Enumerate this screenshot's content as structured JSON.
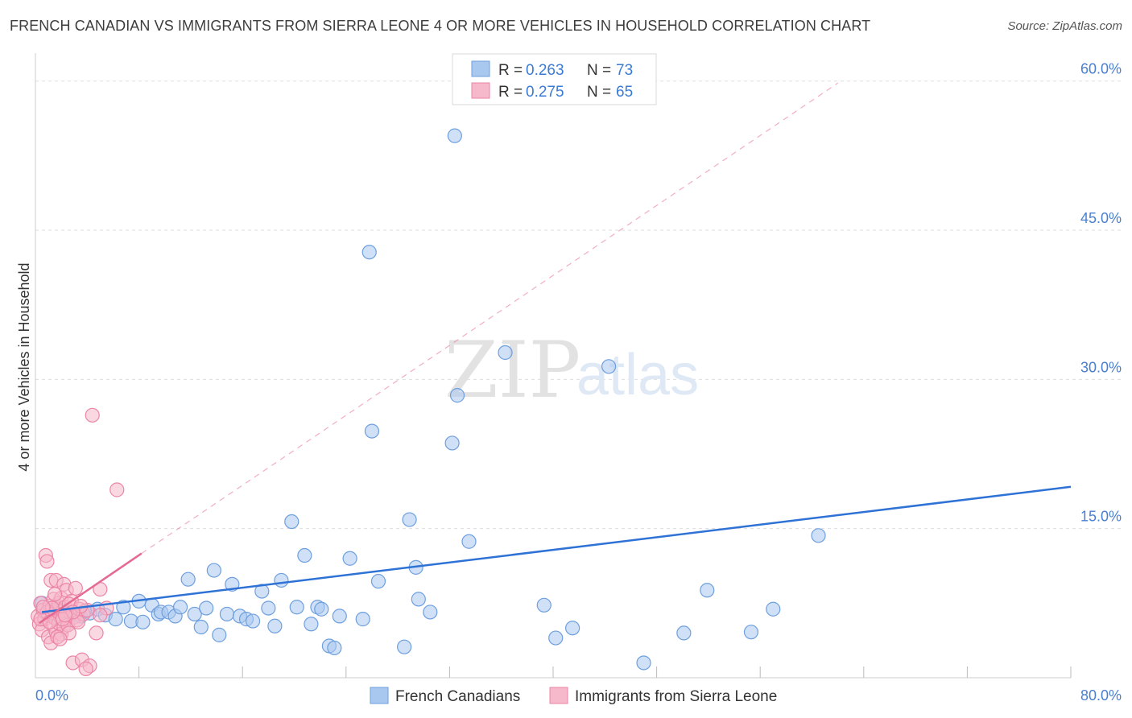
{
  "title": "FRENCH CANADIAN VS IMMIGRANTS FROM SIERRA LEONE 4 OR MORE VEHICLES IN HOUSEHOLD CORRELATION CHART",
  "source": "Source: ZipAtlas.com",
  "watermark": {
    "zip": "ZIP",
    "atlas": "atlas"
  },
  "colors": {
    "blue_fill": "#a9c8f0",
    "blue_stroke": "#6e9fde",
    "blue_line": "#2f72d6",
    "pink_fill": "#f6b8cb",
    "pink_stroke": "#ec85a6",
    "pink_line": "#e56a93",
    "grid": "#dddddd",
    "tick_text": "#4a7fd0"
  },
  "legend": {
    "rows": [
      {
        "r_label": "R =",
        "r_value": "0.263",
        "n_label": "N =",
        "n_value": "73",
        "series": "blue"
      },
      {
        "r_label": "R =",
        "r_value": "0.275",
        "n_label": "N =",
        "n_value": "65",
        "series": "pink"
      }
    ]
  },
  "chart_data": {
    "type": "scatter",
    "title": "FRENCH CANADIAN VS IMMIGRANTS FROM SIERRA LEONE 4 OR MORE VEHICLES IN HOUSEHOLD CORRELATION CHART",
    "xlabel": "",
    "ylabel": "4 or more Vehicles in Household",
    "xlim": [
      0,
      80
    ],
    "ylim": [
      0,
      62
    ],
    "x_tick_labels": [
      {
        "value": 0,
        "label": "0.0%"
      },
      {
        "value": 80,
        "label": "80.0%"
      }
    ],
    "x_minor_ticks": [
      8,
      16,
      24,
      32,
      40,
      48,
      56,
      64,
      72,
      80
    ],
    "y_ticks": [
      {
        "value": 15,
        "label": "15.0%"
      },
      {
        "value": 30,
        "label": "30.0%"
      },
      {
        "value": 45,
        "label": "45.0%"
      },
      {
        "value": 60,
        "label": "60.0%"
      }
    ],
    "grid": true,
    "legend_position": "top-center",
    "series": [
      {
        "name": "French Canadians",
        "color": "blue",
        "r": 0.263,
        "n": 73,
        "trend": {
          "x0": 0.5,
          "y0": 6.6,
          "x1": 80,
          "y1": 19.2,
          "style": "solid"
        },
        "points": [
          [
            0.5,
            7.5
          ],
          [
            0.8,
            6.5
          ],
          [
            1.2,
            6.8
          ],
          [
            1.6,
            7.0
          ],
          [
            2.0,
            6.3
          ],
          [
            2.5,
            6.6
          ],
          [
            3.0,
            6.4
          ],
          [
            3.5,
            6.2
          ],
          [
            4.2,
            6.5
          ],
          [
            4.8,
            6.9
          ],
          [
            5.4,
            6.3
          ],
          [
            6.2,
            5.9
          ],
          [
            6.8,
            7.1
          ],
          [
            7.4,
            5.7
          ],
          [
            8.0,
            7.7
          ],
          [
            8.3,
            5.6
          ],
          [
            9.0,
            7.3
          ],
          [
            9.5,
            6.4
          ],
          [
            9.7,
            6.6
          ],
          [
            10.3,
            6.6
          ],
          [
            10.8,
            6.2
          ],
          [
            11.2,
            7.1
          ],
          [
            11.8,
            9.9
          ],
          [
            12.3,
            6.4
          ],
          [
            12.8,
            5.1
          ],
          [
            13.2,
            7.0
          ],
          [
            13.8,
            10.8
          ],
          [
            14.2,
            4.3
          ],
          [
            14.8,
            6.4
          ],
          [
            15.2,
            9.4
          ],
          [
            15.8,
            6.2
          ],
          [
            16.3,
            5.9
          ],
          [
            16.8,
            5.7
          ],
          [
            17.5,
            8.7
          ],
          [
            18.0,
            7.0
          ],
          [
            18.5,
            5.2
          ],
          [
            19.0,
            9.8
          ],
          [
            19.8,
            15.7
          ],
          [
            20.2,
            7.1
          ],
          [
            20.8,
            12.3
          ],
          [
            21.3,
            5.4
          ],
          [
            21.8,
            7.1
          ],
          [
            22.1,
            6.9
          ],
          [
            22.7,
            3.2
          ],
          [
            23.1,
            3.0
          ],
          [
            23.5,
            6.2
          ],
          [
            24.3,
            12.0
          ],
          [
            25.3,
            5.9
          ],
          [
            25.8,
            42.8
          ],
          [
            26.0,
            24.8
          ],
          [
            26.5,
            9.7
          ],
          [
            28.5,
            3.1
          ],
          [
            28.9,
            15.9
          ],
          [
            29.4,
            11.1
          ],
          [
            29.6,
            7.9
          ],
          [
            30.5,
            6.6
          ],
          [
            32.4,
            54.5
          ],
          [
            32.2,
            23.6
          ],
          [
            32.6,
            28.4
          ],
          [
            33.5,
            13.7
          ],
          [
            36.3,
            32.7
          ],
          [
            39.3,
            7.3
          ],
          [
            40.2,
            4.0
          ],
          [
            41.5,
            5.0
          ],
          [
            44.3,
            31.3
          ],
          [
            47.0,
            1.5
          ],
          [
            50.1,
            4.5
          ],
          [
            51.9,
            8.8
          ],
          [
            55.3,
            4.6
          ],
          [
            57.0,
            6.9
          ],
          [
            60.5,
            14.3
          ],
          [
            1.8,
            6.0
          ],
          [
            3.8,
            6.7
          ]
        ]
      },
      {
        "name": "Immigrants from Sierra Leone",
        "color": "pink",
        "r": 0.275,
        "n": 65,
        "trend": {
          "x0": 0.3,
          "y0": 5.5,
          "x1": 8.2,
          "y1": 12.5,
          "style": "solid"
        },
        "trend_extension": {
          "x0": 8.2,
          "y0": 12.5,
          "x1": 62,
          "y1": 59.8,
          "style": "dashed"
        },
        "points": [
          [
            0.2,
            6.2
          ],
          [
            0.3,
            5.4
          ],
          [
            0.4,
            7.5
          ],
          [
            0.5,
            4.8
          ],
          [
            0.6,
            6.8
          ],
          [
            0.7,
            5.9
          ],
          [
            0.8,
            12.3
          ],
          [
            0.9,
            11.7
          ],
          [
            1.0,
            6.3
          ],
          [
            1.0,
            4.1
          ],
          [
            1.1,
            7.2
          ],
          [
            1.2,
            3.5
          ],
          [
            1.2,
            9.8
          ],
          [
            1.3,
            6.5
          ],
          [
            1.4,
            5.2
          ],
          [
            1.4,
            7.9
          ],
          [
            1.5,
            6.0
          ],
          [
            1.6,
            4.6
          ],
          [
            1.6,
            9.8
          ],
          [
            1.7,
            6.9
          ],
          [
            1.8,
            5.5
          ],
          [
            1.8,
            7.5
          ],
          [
            1.9,
            6.2
          ],
          [
            2.0,
            4.4
          ],
          [
            2.0,
            8.0
          ],
          [
            2.1,
            6.7
          ],
          [
            2.2,
            5.1
          ],
          [
            2.2,
            9.4
          ],
          [
            2.3,
            7.1
          ],
          [
            2.4,
            6.0
          ],
          [
            2.4,
            8.8
          ],
          [
            2.5,
            5.3
          ],
          [
            2.6,
            4.5
          ],
          [
            2.7,
            6.5
          ],
          [
            2.8,
            7.7
          ],
          [
            2.9,
            1.5
          ],
          [
            3.0,
            6.1
          ],
          [
            3.1,
            9.0
          ],
          [
            3.2,
            5.8
          ],
          [
            3.4,
            6.9
          ],
          [
            3.6,
            1.8
          ],
          [
            3.7,
            6.4
          ],
          [
            4.2,
            1.2
          ],
          [
            4.4,
            26.4
          ],
          [
            4.7,
            4.5
          ],
          [
            5.0,
            8.9
          ],
          [
            5.5,
            7.0
          ],
          [
            5.0,
            6.3
          ],
          [
            6.3,
            18.9
          ],
          [
            4.0,
            6.8
          ],
          [
            3.3,
            5.6
          ],
          [
            2.6,
            7.4
          ],
          [
            1.5,
            8.4
          ],
          [
            0.9,
            6.6
          ],
          [
            0.4,
            5.9
          ],
          [
            1.3,
            7.0
          ],
          [
            2.1,
            5.9
          ],
          [
            3.5,
            7.2
          ],
          [
            1.7,
            4.1
          ],
          [
            2.9,
            6.6
          ],
          [
            0.6,
            7.1
          ],
          [
            1.1,
            5.6
          ],
          [
            2.3,
            6.3
          ],
          [
            3.9,
            0.9
          ],
          [
            1.9,
            3.9
          ]
        ]
      }
    ]
  },
  "bottom_legend": {
    "items": [
      {
        "label": "French Canadians",
        "color": "blue"
      },
      {
        "label": "Immigrants from Sierra Leone",
        "color": "pink"
      }
    ]
  }
}
